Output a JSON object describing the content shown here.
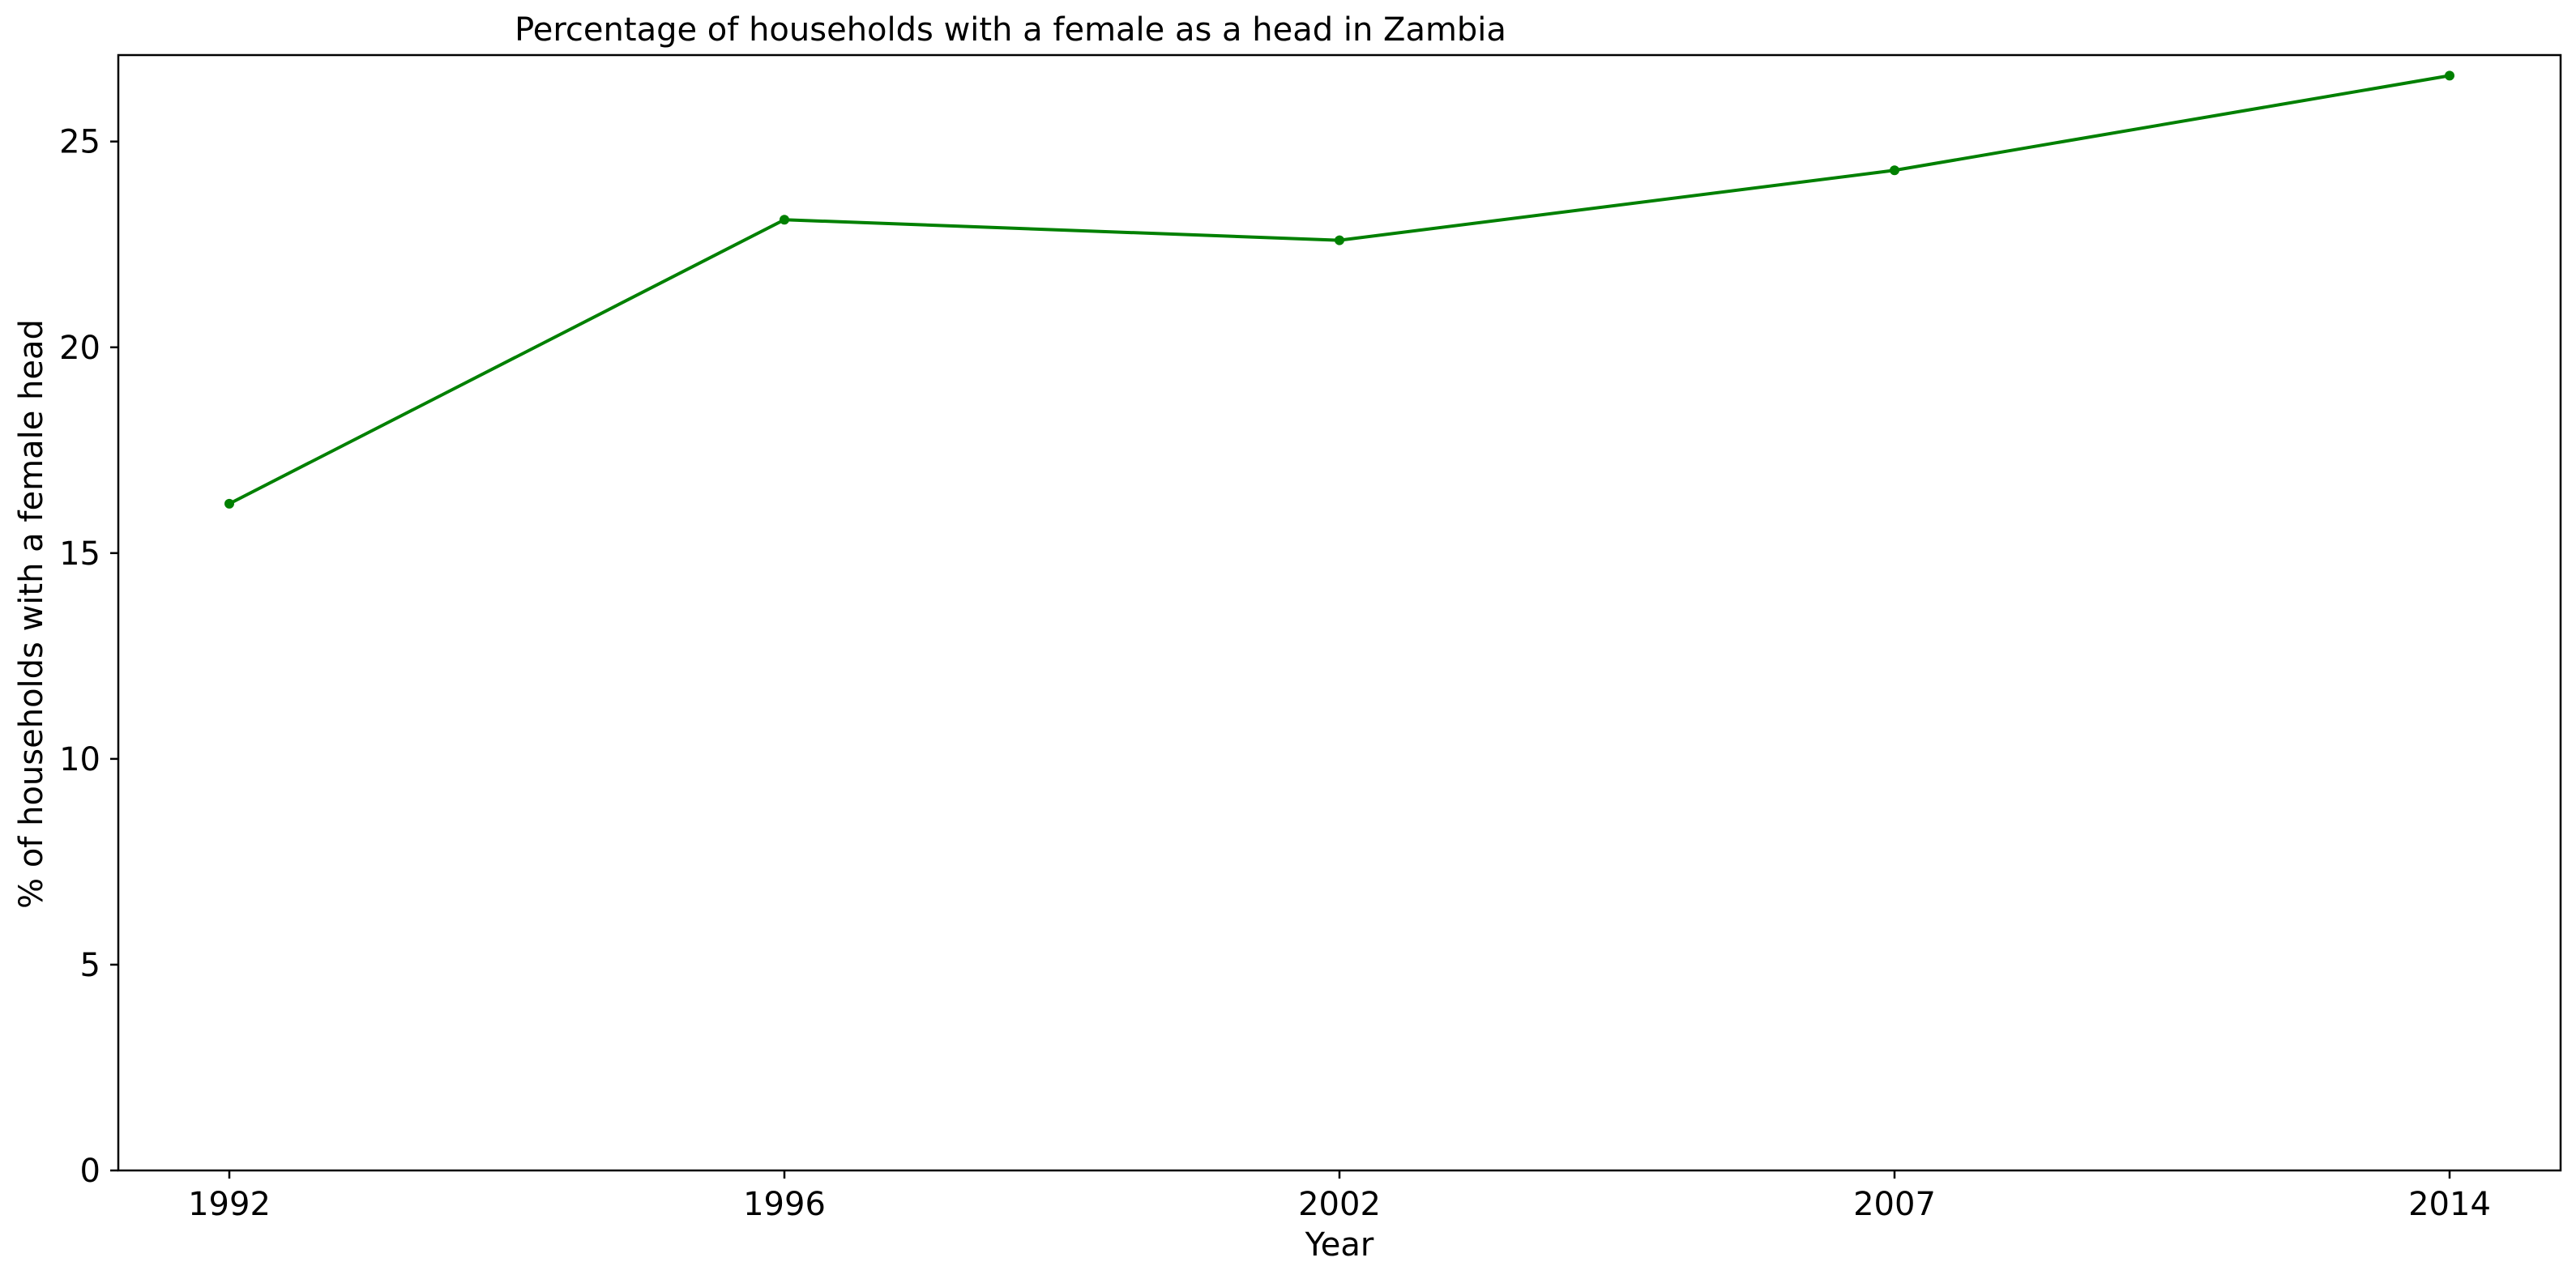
{
  "chart_data": {
    "type": "line",
    "title": "Percentage of households with a female as a head in Zambia",
    "xlabel": "Year",
    "ylabel": "% of households with a female head",
    "categories": [
      "1992",
      "1996",
      "2002",
      "2007",
      "2014"
    ],
    "series": [
      {
        "values": [
          16.2,
          23.1,
          22.6,
          24.3,
          26.6
        ],
        "color": "#008000",
        "marker": "circle"
      }
    ],
    "y_ticks": [
      "0",
      "5",
      "10",
      "15",
      "20",
      "25"
    ],
    "ylim": [
      0,
      27.1
    ],
    "grid": false,
    "legend": "none"
  }
}
